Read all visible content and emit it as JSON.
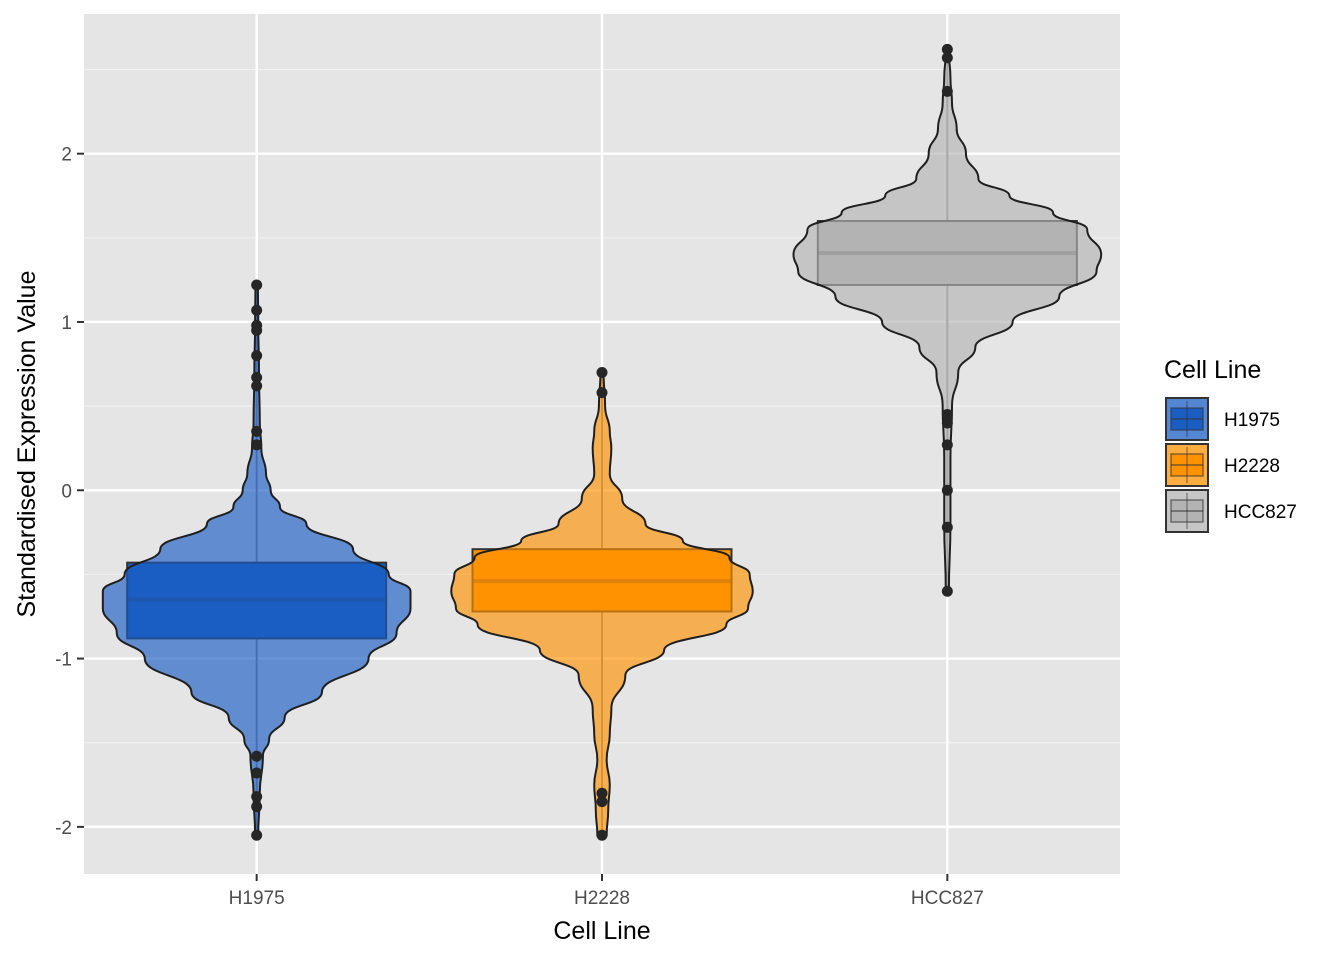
{
  "chart_data": {
    "type": "violin",
    "xlabel": "Cell Line",
    "ylabel": "Standardised Expression Value",
    "categories": [
      "H1975",
      "H2228",
      "HCC827"
    ],
    "ylim": [
      -2.28,
      2.83
    ],
    "yticks": [
      -2,
      -1,
      0,
      1,
      2
    ],
    "ytick_labels": [
      "-2",
      "-1",
      "0",
      "1",
      "2"
    ],
    "grid": true,
    "legend": {
      "title": "Cell Line",
      "position": "right",
      "entries": [
        "H1975",
        "H2228",
        "HCC827"
      ]
    },
    "series": [
      {
        "name": "H1975",
        "color": "#1a5ec4",
        "box": {
          "q1": -0.88,
          "median": -0.65,
          "q3": -0.43,
          "whisker_low": -2.05,
          "whisker_high": 1.22
        },
        "outliers": [
          1.22,
          1.07,
          0.98,
          0.95,
          0.8,
          0.67,
          0.62,
          0.35,
          0.27,
          -1.58,
          -1.68,
          -1.82,
          -1.88,
          -2.05
        ],
        "density": [
          [
            -2.05,
            0.01
          ],
          [
            -1.8,
            0.02
          ],
          [
            -1.58,
            0.04
          ],
          [
            -1.48,
            0.08
          ],
          [
            -1.35,
            0.18
          ],
          [
            -1.2,
            0.42
          ],
          [
            -1.0,
            0.72
          ],
          [
            -0.85,
            0.9
          ],
          [
            -0.7,
            0.99
          ],
          [
            -0.6,
            0.99
          ],
          [
            -0.5,
            0.85
          ],
          [
            -0.35,
            0.62
          ],
          [
            -0.2,
            0.32
          ],
          [
            -0.1,
            0.15
          ],
          [
            0.0,
            0.09
          ],
          [
            0.1,
            0.06
          ],
          [
            0.25,
            0.03
          ],
          [
            0.4,
            0.02
          ],
          [
            0.7,
            0.015
          ],
          [
            1.0,
            0.01
          ],
          [
            1.22,
            0.008
          ]
        ]
      },
      {
        "name": "H2228",
        "color": "#ff9200",
        "box": {
          "q1": -0.72,
          "median": -0.54,
          "q3": -0.35,
          "whisker_low": -2.05,
          "whisker_high": 0.7
        },
        "outliers": [
          0.7,
          0.58,
          -1.8,
          -1.85,
          -2.05
        ],
        "density": [
          [
            -2.05,
            0.03
          ],
          [
            -1.9,
            0.04
          ],
          [
            -1.75,
            0.05
          ],
          [
            -1.6,
            0.03
          ],
          [
            -1.45,
            0.05
          ],
          [
            -1.3,
            0.06
          ],
          [
            -1.1,
            0.15
          ],
          [
            -0.95,
            0.4
          ],
          [
            -0.8,
            0.8
          ],
          [
            -0.7,
            0.94
          ],
          [
            -0.6,
            0.97
          ],
          [
            -0.5,
            0.95
          ],
          [
            -0.4,
            0.82
          ],
          [
            -0.3,
            0.52
          ],
          [
            -0.2,
            0.28
          ],
          [
            -0.05,
            0.13
          ],
          [
            0.1,
            0.05
          ],
          [
            0.25,
            0.06
          ],
          [
            0.35,
            0.05
          ],
          [
            0.5,
            0.02
          ],
          [
            0.7,
            0.01
          ]
        ]
      },
      {
        "name": "HCC827",
        "color": "#b3b3b3",
        "box": {
          "q1": 1.22,
          "median": 1.41,
          "q3": 1.6,
          "whisker_low": -0.6,
          "whisker_high": 2.62
        },
        "outliers": [
          2.62,
          2.57,
          2.37,
          -0.22,
          0.0,
          0.27,
          0.4,
          0.45,
          -0.6
        ],
        "density": [
          [
            -0.6,
            0.01
          ],
          [
            -0.2,
            0.02
          ],
          [
            0.2,
            0.02
          ],
          [
            0.5,
            0.03
          ],
          [
            0.7,
            0.07
          ],
          [
            0.85,
            0.18
          ],
          [
            1.0,
            0.42
          ],
          [
            1.15,
            0.72
          ],
          [
            1.3,
            0.96
          ],
          [
            1.4,
            0.99
          ],
          [
            1.55,
            0.9
          ],
          [
            1.65,
            0.68
          ],
          [
            1.75,
            0.4
          ],
          [
            1.85,
            0.2
          ],
          [
            2.0,
            0.12
          ],
          [
            2.15,
            0.06
          ],
          [
            2.3,
            0.03
          ],
          [
            2.45,
            0.02
          ],
          [
            2.62,
            0.008
          ]
        ]
      }
    ]
  }
}
